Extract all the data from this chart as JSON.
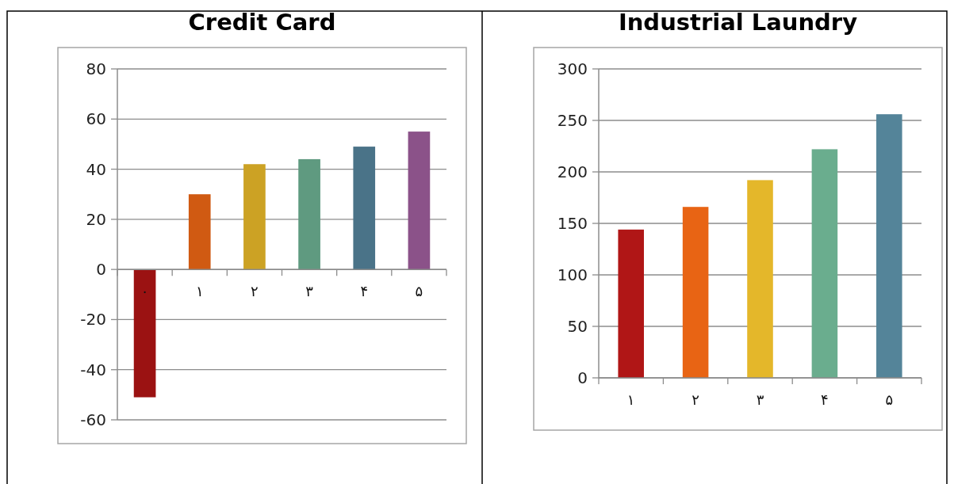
{
  "chart_data": [
    {
      "type": "bar",
      "title": "Credit Card",
      "categories": [
        "۰",
        "۱",
        "۲",
        "۳",
        "۴",
        "۵"
      ],
      "values": [
        -51,
        30,
        42,
        44,
        49,
        55
      ],
      "colors": [
        "#9b1212",
        "#d05a12",
        "#cca224",
        "#5f9a80",
        "#4a7388",
        "#8b5289"
      ],
      "ylim": [
        -60,
        80
      ],
      "yticks": [
        -60,
        -40,
        -20,
        0,
        20,
        40,
        60,
        80
      ],
      "grid": "y"
    },
    {
      "type": "bar",
      "title": "Industrial Laundry",
      "categories": [
        "۱",
        "۲",
        "۳",
        "۴",
        "۵"
      ],
      "values": [
        144,
        166,
        192,
        222,
        256
      ],
      "colors": [
        "#b01616",
        "#e86414",
        "#e4b72a",
        "#6aad8e",
        "#548499"
      ],
      "ylim": [
        0,
        300
      ],
      "yticks": [
        0,
        50,
        100,
        150,
        200,
        250,
        300
      ],
      "grid": "y"
    }
  ]
}
